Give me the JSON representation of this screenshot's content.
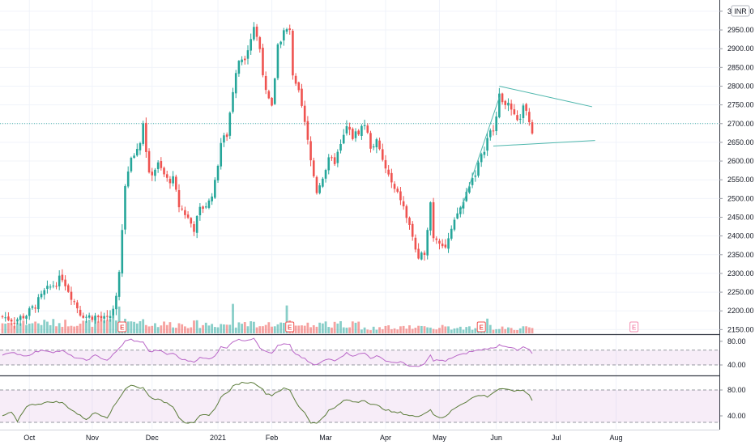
{
  "chart_data": {
    "type": "candlestick",
    "currency_label": "INR",
    "price_axis": {
      "ylim": [
        2140,
        3030
      ],
      "ticks": [
        2150,
        2200,
        2250,
        2300,
        2350,
        2400,
        2450,
        2500,
        2550,
        2600,
        2650,
        2700,
        2750,
        2800,
        2850,
        2900,
        2950,
        3000
      ],
      "tick_labels": [
        "2150.00",
        "2200.00",
        "2250.00",
        "2300.00",
        "2350.00",
        "2400.00",
        "2450.00",
        "2500.00",
        "2550.00",
        "2600.00",
        "2650.00",
        "2700.00",
        "2750.00",
        "2800.00",
        "2850.00",
        "2900.00",
        "2950.00",
        "3000.00"
      ]
    },
    "x_axis_labels": [
      {
        "label": "Oct",
        "idx": 9
      },
      {
        "label": "Nov",
        "idx": 30
      },
      {
        "label": "Dec",
        "idx": 50
      },
      {
        "label": "2021",
        "idx": 72
      },
      {
        "label": "Feb",
        "idx": 90
      },
      {
        "label": "Mar",
        "idx": 108
      },
      {
        "label": "Apr",
        "idx": 128
      },
      {
        "label": "May",
        "idx": 146
      },
      {
        "label": "Jun",
        "idx": 165
      },
      {
        "label": "Jul",
        "idx": 185
      },
      {
        "label": "Aug",
        "idx": 205
      }
    ],
    "price_anchors": [
      [
        0,
        2185
      ],
      [
        4,
        2175
      ],
      [
        8,
        2190
      ],
      [
        11,
        2215
      ],
      [
        14,
        2250
      ],
      [
        17,
        2270
      ],
      [
        20,
        2290
      ],
      [
        23,
        2240
      ],
      [
        26,
        2195
      ],
      [
        28,
        2185
      ],
      [
        31,
        2185
      ],
      [
        35,
        2175
      ],
      [
        37,
        2200
      ],
      [
        39,
        2300
      ],
      [
        41,
        2540
      ],
      [
        43,
        2600
      ],
      [
        46,
        2650
      ],
      [
        47,
        2700
      ],
      [
        49,
        2560
      ],
      [
        52,
        2590
      ],
      [
        55,
        2550
      ],
      [
        57,
        2550
      ],
      [
        59,
        2480
      ],
      [
        61,
        2460
      ],
      [
        64,
        2420
      ],
      [
        66,
        2470
      ],
      [
        69,
        2490
      ],
      [
        71,
        2540
      ],
      [
        73,
        2650
      ],
      [
        75,
        2670
      ],
      [
        77,
        2790
      ],
      [
        79,
        2870
      ],
      [
        81,
        2880
      ],
      [
        83,
        2930
      ],
      [
        84,
        2960
      ],
      [
        86,
        2900
      ],
      [
        88,
        2780
      ],
      [
        90,
        2740
      ],
      [
        92,
        2910
      ],
      [
        94,
        2945
      ],
      [
        96,
        2950
      ],
      [
        97,
        2820
      ],
      [
        99,
        2780
      ],
      [
        101,
        2700
      ],
      [
        103,
        2600
      ],
      [
        105,
        2520
      ],
      [
        107,
        2560
      ],
      [
        109,
        2600
      ],
      [
        111,
        2600
      ],
      [
        113,
        2640
      ],
      [
        115,
        2690
      ],
      [
        117,
        2665
      ],
      [
        119,
        2680
      ],
      [
        121,
        2700
      ],
      [
        123,
        2640
      ],
      [
        125,
        2650
      ],
      [
        127,
        2600
      ],
      [
        129,
        2560
      ],
      [
        131,
        2520
      ],
      [
        133,
        2500
      ],
      [
        135,
        2450
      ],
      [
        137,
        2400
      ],
      [
        139,
        2330
      ],
      [
        141,
        2360
      ],
      [
        143,
        2490
      ],
      [
        144,
        2400
      ],
      [
        146,
        2390
      ],
      [
        148,
        2370
      ],
      [
        150,
        2410
      ],
      [
        152,
        2460
      ],
      [
        154,
        2490
      ],
      [
        156,
        2540
      ],
      [
        158,
        2570
      ],
      [
        160,
        2610
      ],
      [
        162,
        2660
      ],
      [
        164,
        2690
      ],
      [
        166,
        2770
      ],
      [
        168,
        2760
      ],
      [
        170,
        2730
      ],
      [
        172,
        2700
      ],
      [
        174,
        2740
      ],
      [
        176,
        2710
      ],
      [
        177,
        2665
      ]
    ],
    "volume": {
      "ylim": [
        0,
        8
      ],
      "notable_bars": [
        {
          "idx": 39,
          "value": 5.1
        },
        {
          "idx": 77,
          "value": 5.6
        },
        {
          "idx": 95,
          "value": 5.3
        },
        {
          "idx": 162,
          "value": 2.8
        }
      ]
    },
    "earnings_markers": [
      {
        "idx": 40,
        "label": "E"
      },
      {
        "idx": 96,
        "label": "E"
      },
      {
        "idx": 160,
        "label": "E"
      },
      {
        "idx": 211,
        "label": "E"
      }
    ],
    "trendlines": [
      {
        "from": [
          166,
          2800
        ],
        "to": [
          197,
          2745
        ]
      },
      {
        "from": [
          164,
          2640
        ],
        "to": [
          198,
          2655
        ]
      },
      {
        "from": [
          153,
          2465
        ],
        "to": [
          166,
          2770
        ]
      }
    ],
    "last_price_line": 2700,
    "indicator_1": {
      "ylim": [
        25,
        88
      ],
      "ticks": [
        40,
        80
      ],
      "tick_labels": [
        "40.00",
        "80.00"
      ],
      "band": [
        40,
        65
      ],
      "anchors": [
        [
          0,
          58
        ],
        [
          4,
          60
        ],
        [
          8,
          55
        ],
        [
          11,
          62
        ],
        [
          14,
          65
        ],
        [
          17,
          62
        ],
        [
          20,
          64
        ],
        [
          23,
          55
        ],
        [
          26,
          50
        ],
        [
          28,
          48
        ],
        [
          31,
          56
        ],
        [
          35,
          48
        ],
        [
          38,
          62
        ],
        [
          41,
          80
        ],
        [
          43,
          83
        ],
        [
          46,
          78
        ],
        [
          47,
          80
        ],
        [
          49,
          62
        ],
        [
          52,
          65
        ],
        [
          55,
          58
        ],
        [
          57,
          60
        ],
        [
          59,
          52
        ],
        [
          61,
          48
        ],
        [
          64,
          46
        ],
        [
          66,
          52
        ],
        [
          69,
          50
        ],
        [
          71,
          56
        ],
        [
          73,
          70
        ],
        [
          75,
          70
        ],
        [
          77,
          80
        ],
        [
          79,
          82
        ],
        [
          81,
          82
        ],
        [
          83,
          84
        ],
        [
          84,
          86
        ],
        [
          86,
          70
        ],
        [
          88,
          62
        ],
        [
          90,
          60
        ],
        [
          92,
          72
        ],
        [
          94,
          75
        ],
        [
          96,
          74
        ],
        [
          97,
          62
        ],
        [
          99,
          56
        ],
        [
          101,
          50
        ],
        [
          103,
          42
        ],
        [
          105,
          40
        ],
        [
          107,
          46
        ],
        [
          109,
          50
        ],
        [
          111,
          48
        ],
        [
          113,
          54
        ],
        [
          115,
          60
        ],
        [
          117,
          56
        ],
        [
          119,
          58
        ],
        [
          121,
          60
        ],
        [
          123,
          52
        ],
        [
          125,
          55
        ],
        [
          127,
          50
        ],
        [
          129,
          46
        ],
        [
          131,
          44
        ],
        [
          133,
          45
        ],
        [
          135,
          40
        ],
        [
          137,
          38
        ],
        [
          139,
          36
        ],
        [
          141,
          42
        ],
        [
          143,
          56
        ],
        [
          144,
          48
        ],
        [
          146,
          48
        ],
        [
          148,
          46
        ],
        [
          150,
          52
        ],
        [
          152,
          56
        ],
        [
          154,
          58
        ],
        [
          156,
          62
        ],
        [
          158,
          64
        ],
        [
          160,
          66
        ],
        [
          162,
          68
        ],
        [
          164,
          68
        ],
        [
          166,
          74
        ],
        [
          168,
          72
        ],
        [
          170,
          70
        ],
        [
          172,
          64
        ],
        [
          174,
          70
        ],
        [
          176,
          66
        ],
        [
          177,
          58
        ]
      ]
    },
    "indicator_2": {
      "ylim": [
        20,
        100
      ],
      "ticks": [
        40,
        80
      ],
      "tick_labels": [
        "40.00",
        "80.00"
      ],
      "band": [
        30,
        80
      ],
      "anchors": [
        [
          0,
          40
        ],
        [
          3,
          45
        ],
        [
          5,
          32
        ],
        [
          8,
          55
        ],
        [
          11,
          58
        ],
        [
          14,
          60
        ],
        [
          17,
          62
        ],
        [
          20,
          60
        ],
        [
          23,
          50
        ],
        [
          26,
          40
        ],
        [
          28,
          35
        ],
        [
          31,
          45
        ],
        [
          35,
          38
        ],
        [
          38,
          60
        ],
        [
          41,
          82
        ],
        [
          43,
          88
        ],
        [
          46,
          82
        ],
        [
          47,
          85
        ],
        [
          49,
          70
        ],
        [
          52,
          65
        ],
        [
          55,
          60
        ],
        [
          57,
          55
        ],
        [
          59,
          38
        ],
        [
          61,
          30
        ],
        [
          64,
          28
        ],
        [
          66,
          40
        ],
        [
          69,
          42
        ],
        [
          71,
          50
        ],
        [
          73,
          70
        ],
        [
          75,
          75
        ],
        [
          77,
          85
        ],
        [
          79,
          90
        ],
        [
          81,
          92
        ],
        [
          83,
          91
        ],
        [
          84,
          92
        ],
        [
          86,
          85
        ],
        [
          88,
          75
        ],
        [
          90,
          72
        ],
        [
          92,
          78
        ],
        [
          94,
          82
        ],
        [
          96,
          80
        ],
        [
          97,
          70
        ],
        [
          99,
          55
        ],
        [
          101,
          45
        ],
        [
          103,
          30
        ],
        [
          105,
          28
        ],
        [
          107,
          38
        ],
        [
          109,
          48
        ],
        [
          111,
          52
        ],
        [
          113,
          60
        ],
        [
          115,
          65
        ],
        [
          117,
          62
        ],
        [
          119,
          62
        ],
        [
          121,
          65
        ],
        [
          123,
          58
        ],
        [
          125,
          56
        ],
        [
          127,
          52
        ],
        [
          129,
          48
        ],
        [
          131,
          45
        ],
        [
          133,
          45
        ],
        [
          135,
          42
        ],
        [
          137,
          40
        ],
        [
          139,
          38
        ],
        [
          141,
          45
        ],
        [
          143,
          50
        ],
        [
          144,
          42
        ],
        [
          146,
          38
        ],
        [
          148,
          38
        ],
        [
          150,
          48
        ],
        [
          152,
          55
        ],
        [
          154,
          60
        ],
        [
          156,
          65
        ],
        [
          158,
          70
        ],
        [
          160,
          72
        ],
        [
          162,
          70
        ],
        [
          164,
          76
        ],
        [
          166,
          82
        ],
        [
          168,
          80
        ],
        [
          170,
          80
        ],
        [
          172,
          78
        ],
        [
          174,
          80
        ],
        [
          176,
          72
        ],
        [
          177,
          65
        ]
      ]
    }
  }
}
